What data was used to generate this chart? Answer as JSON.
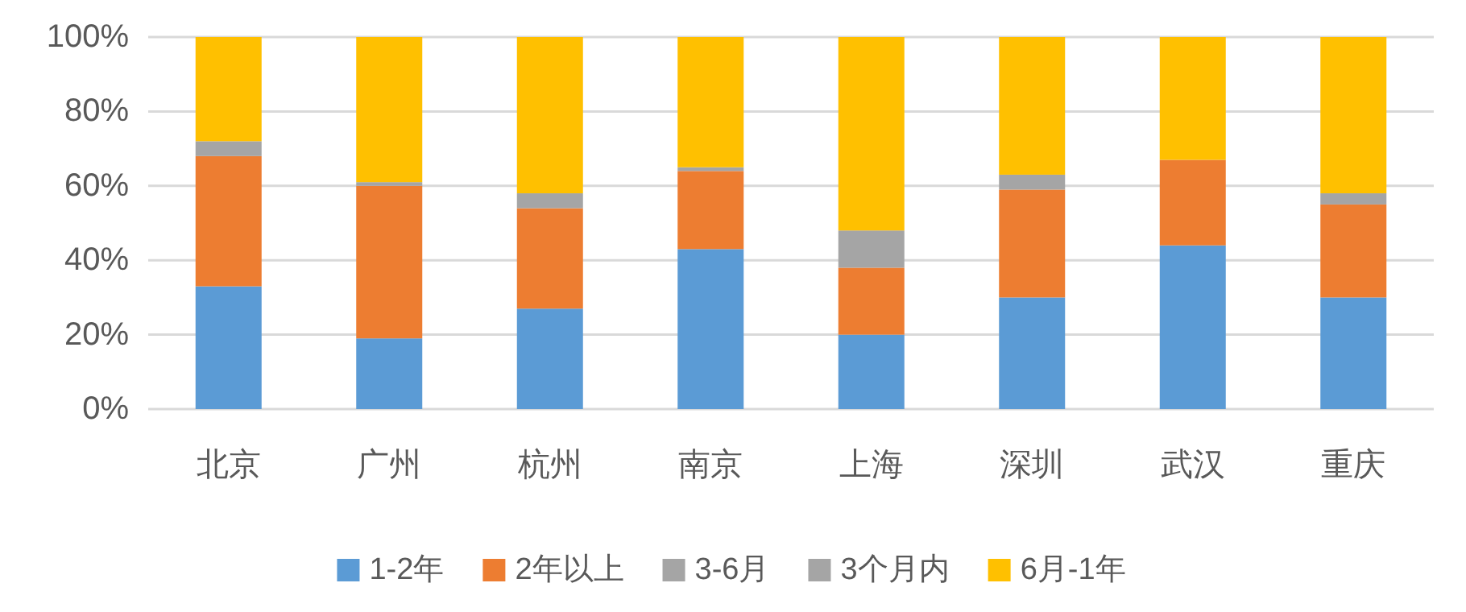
{
  "chart_data": {
    "type": "bar",
    "stacked": true,
    "categories": [
      "北京",
      "广州",
      "杭州",
      "南京",
      "上海",
      "深圳",
      "武汉",
      "重庆"
    ],
    "series": [
      {
        "name": "1-2年",
        "color": "#5b9bd5",
        "values": [
          33,
          19,
          27,
          43,
          20,
          30,
          44,
          30
        ]
      },
      {
        "name": "2年以上",
        "color": "#ed7d31",
        "values": [
          35,
          41,
          27,
          21,
          18,
          29,
          23,
          25
        ]
      },
      {
        "name": "3-6月",
        "color": "#a5a5a5",
        "values": [
          4,
          1,
          4,
          1,
          10,
          4,
          0,
          3
        ]
      },
      {
        "name": "3个月内",
        "color": "#a5a5a5",
        "values": [
          0,
          0,
          0,
          0,
          0,
          0,
          0,
          0
        ]
      },
      {
        "name": "6月-1年",
        "color": "#ffc000",
        "values": [
          28,
          39,
          42,
          35,
          52,
          37,
          33,
          42
        ]
      }
    ],
    "ylim": [
      0,
      100
    ],
    "yticks": [
      {
        "value": 0,
        "label": "0%"
      },
      {
        "value": 20,
        "label": "20%"
      },
      {
        "value": 40,
        "label": "40%"
      },
      {
        "value": 60,
        "label": "60%"
      },
      {
        "value": 80,
        "label": "80%"
      },
      {
        "value": 100,
        "label": "100%"
      }
    ],
    "grid": "y",
    "legend": "bottom"
  }
}
